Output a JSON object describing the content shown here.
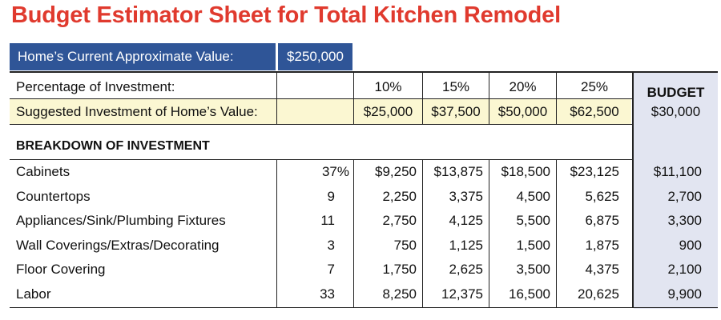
{
  "title": "Budget Estimator Sheet for Total Kitchen Remodel",
  "home_value": {
    "label": "Home’s Current Approximate Value:",
    "value": "$250,000"
  },
  "investment_levels": {
    "percentage_label": "Percentage of Investment:",
    "percentages": [
      "10%",
      "15%",
      "20%",
      "25%"
    ],
    "suggested_label": "Suggested Investment of Home’s Value:",
    "suggested_values": [
      "$25,000",
      "$37,500",
      "$50,000",
      "$62,500"
    ]
  },
  "budget": {
    "header": "BUDGET",
    "value": "$30,000"
  },
  "breakdown": {
    "header": "BREAKDOWN OF INVESTMENT",
    "rows": [
      {
        "item": "Cabinets",
        "pct": "37%",
        "v10": "$9,250",
        "v15": "$13,875",
        "v20": "$18,500",
        "v25": "$23,125",
        "budget": "$11,100"
      },
      {
        "item": "Countertops",
        "pct": "9",
        "v10": "2,250",
        "v15": "3,375",
        "v20": "4,500",
        "v25": "5,625",
        "budget": "2,700"
      },
      {
        "item": "Appliances/Sink/Plumbing Fixtures",
        "pct": "11",
        "v10": "2,750",
        "v15": "4,125",
        "v20": "5,500",
        "v25": "6,875",
        "budget": "3,300"
      },
      {
        "item": "Wall Coverings/Extras/Decorating",
        "pct": "3",
        "v10": "750",
        "v15": "1,125",
        "v20": "1,500",
        "v25": "1,875",
        "budget": "900"
      },
      {
        "item": "Floor Covering",
        "pct": "7",
        "v10": "1,750",
        "v15": "2,625",
        "v20": "3,500",
        "v25": "4,375",
        "budget": "2,100"
      },
      {
        "item": "Labor",
        "pct": "33",
        "v10": "8,250",
        "v15": "12,375",
        "v20": "16,500",
        "v25": "20,625",
        "budget": "9,900"
      }
    ]
  }
}
